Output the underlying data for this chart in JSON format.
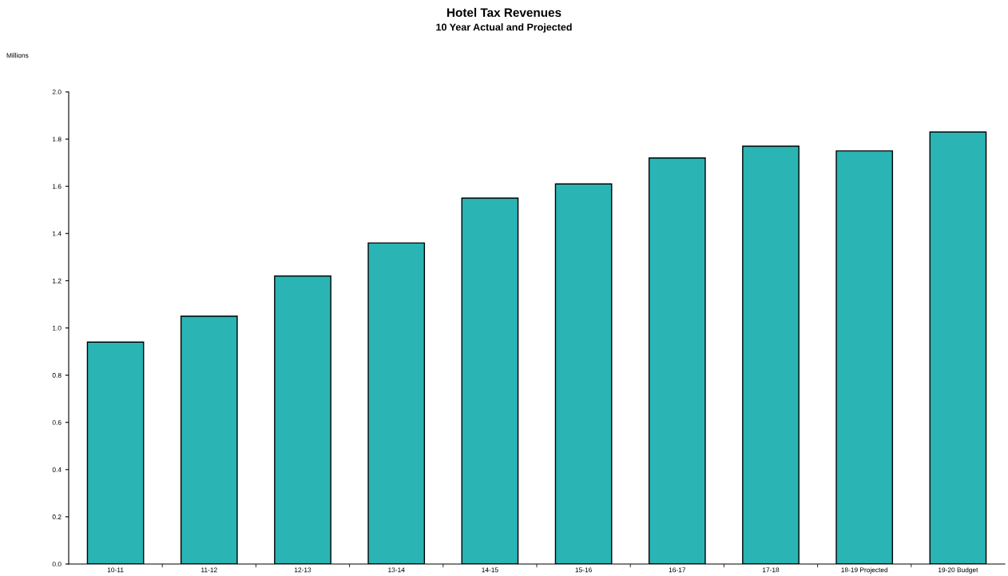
{
  "chart_data": {
    "type": "bar",
    "title": "Hotel Tax Revenues",
    "subtitle": "10 Year Actual and Projected",
    "annotations": [
      "Millions"
    ],
    "categories": [
      "10-11",
      "11-12",
      "12-13",
      "13-14",
      "14-15",
      "15-16",
      "16-17",
      "17-18",
      "18-19 Projected",
      "19-20 Budget"
    ],
    "values": [
      0.94,
      1.05,
      1.22,
      1.36,
      1.55,
      1.61,
      1.72,
      1.77,
      1.75,
      1.83
    ],
    "color": "#2ab4b4",
    "ylim": [
      0,
      2.0
    ],
    "yticks": [
      {
        "value": 0,
        "label": "0.0"
      },
      {
        "value": 0.2,
        "label": "0.2"
      },
      {
        "value": 0.4,
        "label": "0.4"
      },
      {
        "value": 0.6,
        "label": "0.6"
      },
      {
        "value": 0.8,
        "label": "0.8"
      },
      {
        "value": 1.0,
        "label": "1.0"
      },
      {
        "value": 1.2,
        "label": "1.2"
      },
      {
        "value": 1.4,
        "label": "1.4"
      },
      {
        "value": 1.6,
        "label": "1.6"
      },
      {
        "value": 1.8,
        "label": "1.8"
      },
      {
        "value": 2.0,
        "label": "2.0"
      }
    ],
    "grid": false
  }
}
